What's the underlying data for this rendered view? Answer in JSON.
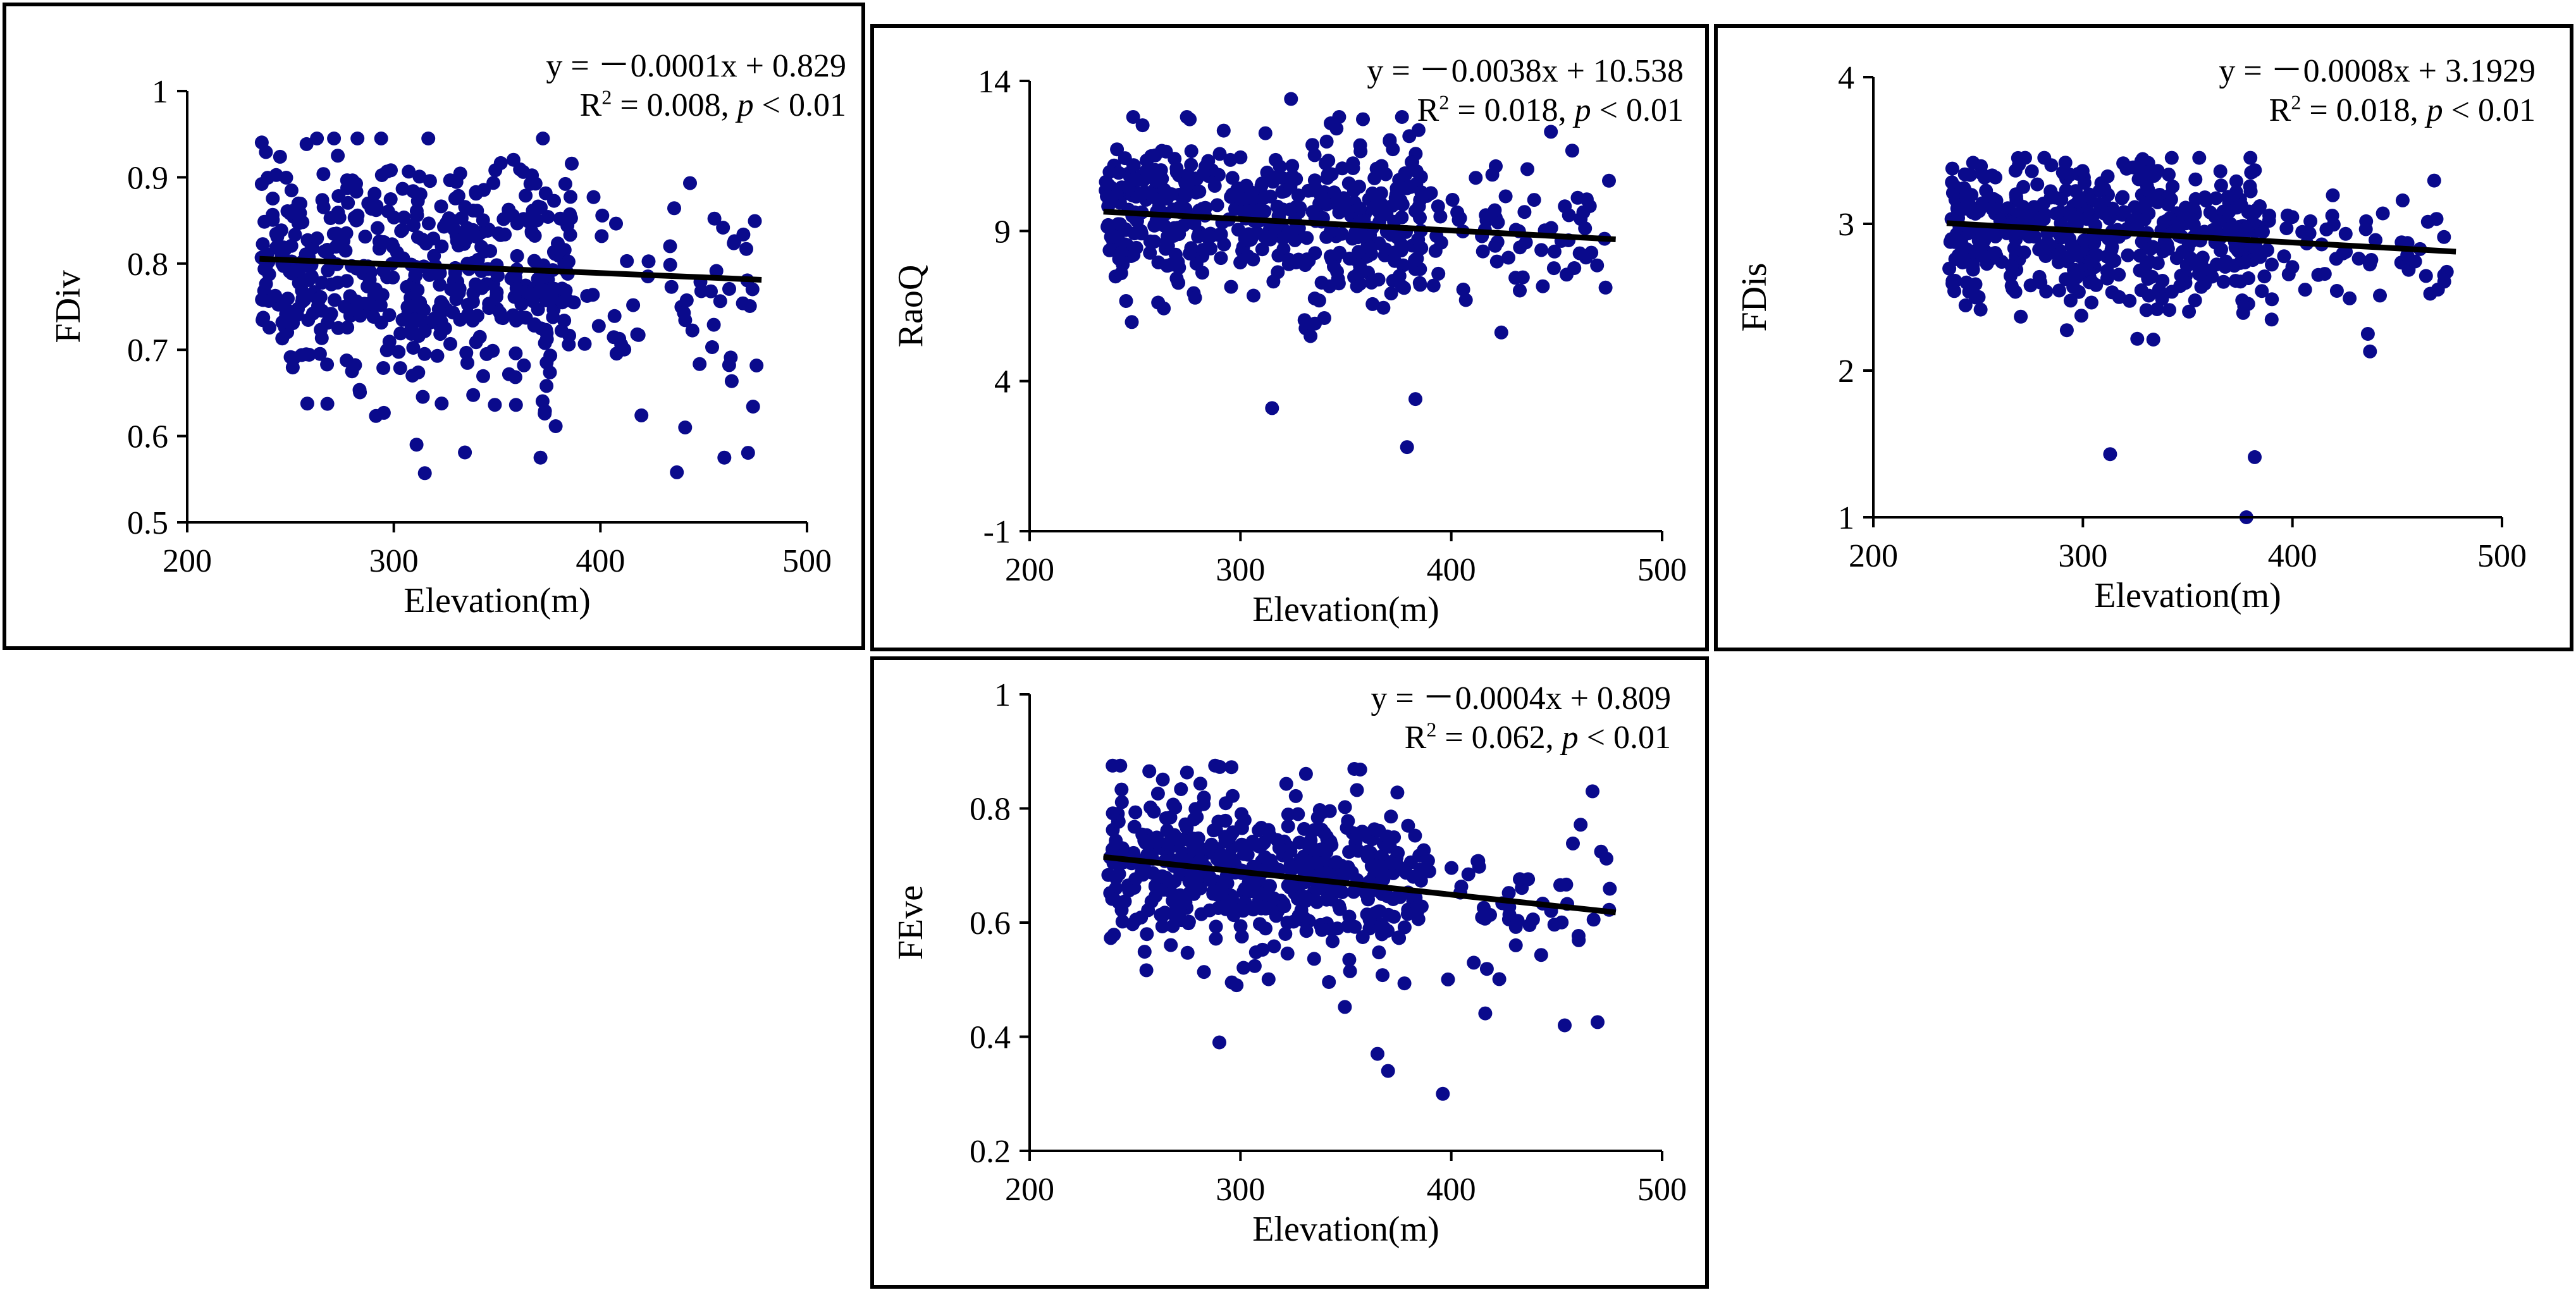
{
  "colors": {
    "point": "#0a0a8c",
    "trend": "#000000",
    "axis": "#000000"
  },
  "chart_data": [
    {
      "type": "scatter",
      "title": "",
      "ylabel": "FDiv",
      "xlabel": "Elevation(m)",
      "xlim": [
        200,
        500
      ],
      "ylim": [
        0.5,
        1.0
      ],
      "xticks": [
        "200",
        "300",
        "400",
        "500"
      ],
      "yticks": [
        "0.5",
        "0.6",
        "0.7",
        "0.8",
        "0.9",
        "1"
      ],
      "y_center": 0.79,
      "y_spread": 0.07,
      "y_min": 0.555,
      "y_max": 0.945,
      "n_points": 560,
      "seed": 11,
      "outliers": [
        [
          315,
          0.557
        ],
        [
          437,
          0.558
        ],
        [
          371,
          0.575
        ],
        [
          460,
          0.575
        ],
        [
          311,
          0.59
        ],
        [
          441,
          0.61
        ]
      ],
      "trendline": {
        "slope": -0.0001,
        "intercept": 0.829,
        "x_start": 235,
        "x_end": 478
      },
      "equation": {
        "prefix": "y = ",
        "minus": "－",
        "body": "0.0001x + 0.829",
        "r2_label": "R",
        "r2_sup": "2",
        "r2_value": " = 0.008, ",
        "p_label": "p",
        "p_value": " < 0.01"
      }
    },
    {
      "type": "scatter",
      "title": "",
      "ylabel": "RaoQ",
      "xlabel": "Elevation(m)",
      "xlim": [
        200,
        500
      ],
      "ylim": [
        -1,
        14
      ],
      "xticks": [
        "200",
        "300",
        "400",
        "500"
      ],
      "yticks": [
        "-1",
        "4",
        "9",
        "14"
      ],
      "y_center": 9.3,
      "y_spread": 1.35,
      "y_min": 5.5,
      "y_max": 12.8,
      "n_points": 560,
      "seed": 23,
      "outliers": [
        [
          315,
          3.1
        ],
        [
          383,
          3.4
        ],
        [
          379,
          1.8
        ],
        [
          324,
          13.4
        ]
      ],
      "trendline": {
        "slope": -0.0038,
        "intercept": 10.538,
        "x_start": 235,
        "x_end": 478
      },
      "equation": {
        "prefix": "y = ",
        "minus": "－",
        "body": "0.0038x + 10.538",
        "r2_label": "R",
        "r2_sup": "2",
        "r2_value": " = 0.018, ",
        "p_label": "p",
        "p_value": " < 0.01"
      }
    },
    {
      "type": "scatter",
      "title": "",
      "ylabel": "FDis",
      "xlabel": "Elevation(m)",
      "xlim": [
        200,
        500
      ],
      "ylim": [
        1,
        4
      ],
      "xticks": [
        "200",
        "300",
        "400",
        "500"
      ],
      "yticks": [
        "1",
        "2",
        "3",
        "4"
      ],
      "y_center": 2.93,
      "y_spread": 0.25,
      "y_min": 2.0,
      "y_max": 3.45,
      "n_points": 560,
      "seed": 37,
      "outliers": [
        [
          313,
          1.43
        ],
        [
          382,
          1.41
        ],
        [
          378,
          1.0
        ],
        [
          437,
          2.13
        ],
        [
          436,
          2.25
        ]
      ],
      "trendline": {
        "slope": -0.0008,
        "intercept": 3.1929,
        "x_start": 235,
        "x_end": 478
      },
      "equation": {
        "prefix": "y = ",
        "minus": "－",
        "body": "0.0008x + 3.1929",
        "r2_label": "R",
        "r2_sup": "2",
        "r2_value": " = 0.018, ",
        "p_label": "p",
        "p_value": " < 0.01"
      }
    },
    {
      "type": "scatter",
      "title": "",
      "ylabel": "FEve",
      "xlabel": "Elevation(m)",
      "xlim": [
        200,
        500
      ],
      "ylim": [
        0.2,
        1.0
      ],
      "xticks": [
        "200",
        "300",
        "400",
        "500"
      ],
      "yticks": [
        "0.2",
        "0.4",
        "0.6",
        "0.8",
        "1"
      ],
      "y_center": 0.665,
      "y_spread": 0.075,
      "y_min": 0.42,
      "y_max": 0.875,
      "n_points": 560,
      "seed": 53,
      "outliers": [
        [
          396,
          0.3
        ],
        [
          290,
          0.39
        ],
        [
          370,
          0.34
        ],
        [
          365,
          0.37
        ],
        [
          467,
          0.83
        ],
        [
          288,
          0.875
        ]
      ],
      "trendline": {
        "slope": -0.0004,
        "intercept": 0.809,
        "x_start": 235,
        "x_end": 478
      },
      "equation": {
        "prefix": "y = ",
        "minus": "－",
        "body": "0.0004x + 0.809",
        "r2_label": "R",
        "r2_sup": "2",
        "r2_value": " = 0.062, ",
        "p_label": "p",
        "p_value": " < 0.01"
      }
    }
  ]
}
